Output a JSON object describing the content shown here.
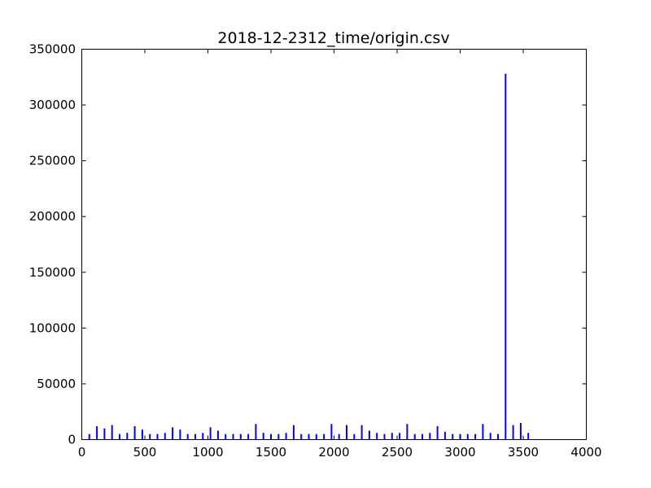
{
  "chart_data": {
    "type": "bar",
    "title": "2018-12-2312_time/origin.csv",
    "xlabel": "",
    "ylabel": "",
    "xlim": [
      0,
      4000
    ],
    "ylim": [
      0,
      350000
    ],
    "x_ticks": [
      0,
      500,
      1000,
      1500,
      2000,
      2500,
      3000,
      3500,
      4000
    ],
    "y_ticks": [
      0,
      50000,
      100000,
      150000,
      200000,
      250000,
      300000,
      350000
    ],
    "grid": false,
    "bar_color": "#0000ff",
    "series": [
      {
        "x": [
          60,
          120,
          180,
          240,
          300,
          360,
          420,
          480,
          540,
          600,
          660,
          720,
          780,
          840,
          900,
          960,
          1020,
          1080,
          1140,
          1200,
          1260,
          1320,
          1380,
          1440,
          1500,
          1560,
          1620,
          1680,
          1740,
          1800,
          1860,
          1920,
          1980,
          2040,
          2100,
          2160,
          2220,
          2280,
          2340,
          2400,
          2460,
          2520,
          2580,
          2640,
          2700,
          2760,
          2820,
          2880,
          2940,
          3000,
          3060,
          3120,
          3180,
          3240,
          3300,
          3360,
          3420,
          3480,
          3540
        ],
        "values": [
          5000,
          12000,
          10000,
          13000,
          5000,
          6000,
          12000,
          9000,
          5000,
          5000,
          6000,
          11000,
          9000,
          5000,
          5000,
          6000,
          11000,
          8000,
          5000,
          5000,
          5000,
          5000,
          14000,
          6000,
          5000,
          5000,
          6000,
          13000,
          5000,
          5000,
          5000,
          5000,
          14000,
          5000,
          13000,
          5000,
          13000,
          8000,
          6000,
          5000,
          6000,
          6000,
          14000,
          5000,
          5000,
          6000,
          12000,
          7000,
          5000,
          5000,
          5000,
          5000,
          14000,
          6000,
          5000,
          328000,
          13000,
          15000,
          6000
        ]
      }
    ]
  }
}
